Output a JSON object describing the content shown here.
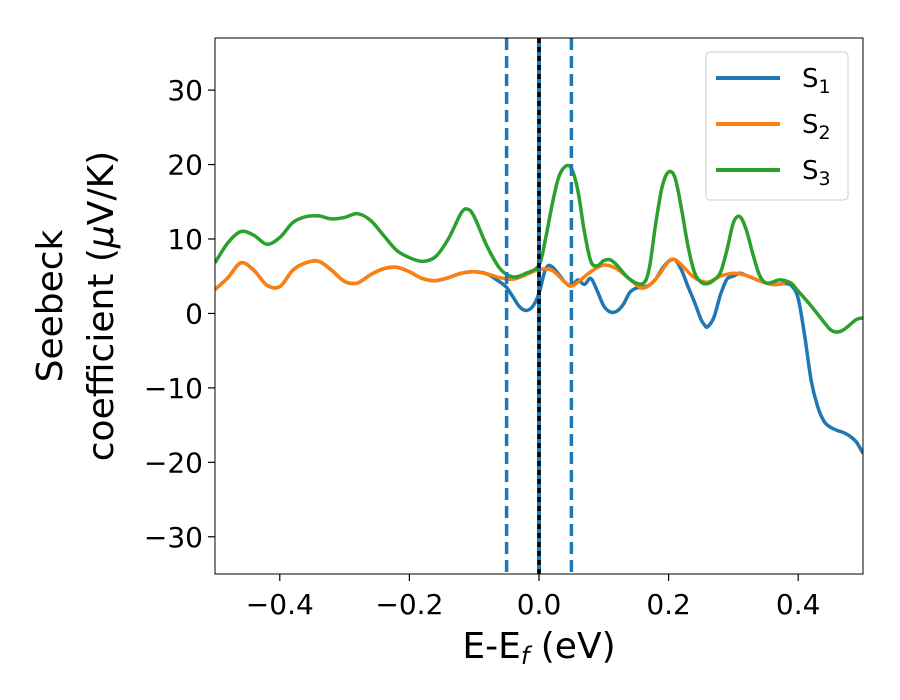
{
  "chart_data": {
    "type": "line",
    "title": "",
    "xlabel": {
      "base": "E-E",
      "sub": "f",
      "rest": " (eV)"
    },
    "ylabel": {
      "line1": "Seebeck",
      "line2_pre": "coefficient  (",
      "mu": "μ",
      "line2_post": "V/K)"
    },
    "xlim": [
      -0.5,
      0.5
    ],
    "ylim": [
      -35,
      37
    ],
    "x_ticks": [
      {
        "value": -0.4,
        "label": "−0.4"
      },
      {
        "value": -0.2,
        "label": "−0.2"
      },
      {
        "value": 0.0,
        "label": "0.0"
      },
      {
        "value": 0.2,
        "label": "0.2"
      },
      {
        "value": 0.4,
        "label": "0.4"
      }
    ],
    "y_ticks": [
      {
        "value": 30,
        "label": "30"
      },
      {
        "value": 20,
        "label": "20"
      },
      {
        "value": 10,
        "label": "10"
      },
      {
        "value": 0,
        "label": "0"
      },
      {
        "value": -10,
        "label": "−10"
      },
      {
        "value": -20,
        "label": "−20"
      },
      {
        "value": -30,
        "label": "−30"
      }
    ],
    "grid": false,
    "legend_position": "top-right",
    "vlines": [
      {
        "x": -0.05,
        "style": "dashed",
        "color": "#1f77b4"
      },
      {
        "x": 0.0,
        "style": "solid",
        "color": "#1f77b4"
      },
      {
        "x": 0.0,
        "style": "dashed",
        "color": "#000000"
      },
      {
        "x": 0.05,
        "style": "dashed",
        "color": "#1f77b4"
      }
    ],
    "series": [
      {
        "name": "S",
        "sub": "1",
        "color": "#1f77b4",
        "points": [
          [
            -0.5,
            3.2
          ],
          [
            -0.48,
            4.8
          ],
          [
            -0.46,
            6.8
          ],
          [
            -0.44,
            5.8
          ],
          [
            -0.42,
            3.8
          ],
          [
            -0.4,
            3.6
          ],
          [
            -0.38,
            5.8
          ],
          [
            -0.36,
            6.8
          ],
          [
            -0.34,
            7.0
          ],
          [
            -0.32,
            5.8
          ],
          [
            -0.3,
            4.3
          ],
          [
            -0.28,
            4.1
          ],
          [
            -0.26,
            5.2
          ],
          [
            -0.24,
            6.0
          ],
          [
            -0.22,
            6.2
          ],
          [
            -0.2,
            5.6
          ],
          [
            -0.18,
            4.7
          ],
          [
            -0.16,
            4.4
          ],
          [
            -0.14,
            4.8
          ],
          [
            -0.12,
            5.4
          ],
          [
            -0.1,
            5.6
          ],
          [
            -0.08,
            5.3
          ],
          [
            -0.06,
            4.2
          ],
          [
            -0.05,
            3.5
          ],
          [
            -0.04,
            2.2
          ],
          [
            -0.03,
            0.9
          ],
          [
            -0.02,
            0.4
          ],
          [
            -0.01,
            0.9
          ],
          [
            0.0,
            2.7
          ],
          [
            0.01,
            5.9
          ],
          [
            0.02,
            6.3
          ],
          [
            0.04,
            4.2
          ],
          [
            0.05,
            3.7
          ],
          [
            0.06,
            4.5
          ],
          [
            0.07,
            3.9
          ],
          [
            0.08,
            4.7
          ],
          [
            0.09,
            3.0
          ],
          [
            0.1,
            1.0
          ],
          [
            0.11,
            0.2
          ],
          [
            0.12,
            0.3
          ],
          [
            0.13,
            1.2
          ],
          [
            0.14,
            2.8
          ],
          [
            0.15,
            3.4
          ],
          [
            0.16,
            3.5
          ],
          [
            0.17,
            3.8
          ],
          [
            0.18,
            4.6
          ],
          [
            0.19,
            6.0
          ],
          [
            0.2,
            7.0
          ],
          [
            0.21,
            7.2
          ],
          [
            0.22,
            5.8
          ],
          [
            0.23,
            3.6
          ],
          [
            0.24,
            1.5
          ],
          [
            0.25,
            -0.8
          ],
          [
            0.255,
            -1.5
          ],
          [
            0.26,
            -1.8
          ],
          [
            0.27,
            -0.5
          ],
          [
            0.28,
            2.5
          ],
          [
            0.29,
            4.6
          ],
          [
            0.3,
            5.0
          ],
          [
            0.31,
            5.4
          ],
          [
            0.32,
            5.1
          ],
          [
            0.34,
            4.4
          ],
          [
            0.36,
            3.9
          ],
          [
            0.38,
            4.0
          ],
          [
            0.39,
            3.7
          ],
          [
            0.4,
            2.0
          ],
          [
            0.41,
            -3.0
          ],
          [
            0.42,
            -9.0
          ],
          [
            0.43,
            -12.5
          ],
          [
            0.44,
            -14.5
          ],
          [
            0.45,
            -15.3
          ],
          [
            0.46,
            -15.7
          ],
          [
            0.47,
            -16.0
          ],
          [
            0.48,
            -16.5
          ],
          [
            0.49,
            -17.3
          ],
          [
            0.5,
            -18.8
          ]
        ]
      },
      {
        "name": "S",
        "sub": "2",
        "color": "#ff7f0e",
        "points": [
          [
            -0.5,
            3.2
          ],
          [
            -0.48,
            4.8
          ],
          [
            -0.46,
            6.8
          ],
          [
            -0.44,
            5.8
          ],
          [
            -0.42,
            3.8
          ],
          [
            -0.4,
            3.6
          ],
          [
            -0.38,
            5.8
          ],
          [
            -0.36,
            6.8
          ],
          [
            -0.34,
            7.0
          ],
          [
            -0.32,
            5.8
          ],
          [
            -0.3,
            4.3
          ],
          [
            -0.28,
            4.1
          ],
          [
            -0.26,
            5.2
          ],
          [
            -0.24,
            6.0
          ],
          [
            -0.22,
            6.2
          ],
          [
            -0.2,
            5.6
          ],
          [
            -0.18,
            4.7
          ],
          [
            -0.16,
            4.4
          ],
          [
            -0.14,
            4.8
          ],
          [
            -0.12,
            5.4
          ],
          [
            -0.1,
            5.6
          ],
          [
            -0.08,
            5.3
          ],
          [
            -0.06,
            4.8
          ],
          [
            -0.04,
            4.6
          ],
          [
            -0.02,
            5.2
          ],
          [
            0.0,
            5.9
          ],
          [
            0.02,
            5.8
          ],
          [
            0.04,
            4.2
          ],
          [
            0.05,
            3.7
          ],
          [
            0.06,
            4.2
          ],
          [
            0.08,
            5.6
          ],
          [
            0.1,
            6.5
          ],
          [
            0.12,
            6.0
          ],
          [
            0.14,
            4.6
          ],
          [
            0.16,
            3.4
          ],
          [
            0.18,
            4.6
          ],
          [
            0.2,
            7.0
          ],
          [
            0.21,
            7.2
          ],
          [
            0.22,
            6.5
          ],
          [
            0.24,
            4.8
          ],
          [
            0.26,
            4.2
          ],
          [
            0.28,
            5.0
          ],
          [
            0.3,
            5.4
          ],
          [
            0.32,
            5.1
          ],
          [
            0.34,
            4.4
          ],
          [
            0.36,
            3.9
          ],
          [
            0.38,
            4.0
          ]
        ]
      },
      {
        "name": "S",
        "sub": "3",
        "color": "#2ca02c",
        "points": [
          [
            -0.5,
            6.8
          ],
          [
            -0.48,
            9.5
          ],
          [
            -0.46,
            11.0
          ],
          [
            -0.44,
            10.5
          ],
          [
            -0.42,
            9.3
          ],
          [
            -0.4,
            10.2
          ],
          [
            -0.38,
            12.2
          ],
          [
            -0.36,
            13.0
          ],
          [
            -0.34,
            13.1
          ],
          [
            -0.32,
            12.7
          ],
          [
            -0.3,
            12.9
          ],
          [
            -0.28,
            13.4
          ],
          [
            -0.26,
            12.5
          ],
          [
            -0.24,
            10.5
          ],
          [
            -0.22,
            8.5
          ],
          [
            -0.2,
            7.5
          ],
          [
            -0.18,
            7.0
          ],
          [
            -0.16,
            7.6
          ],
          [
            -0.14,
            10.0
          ],
          [
            -0.12,
            13.5
          ],
          [
            -0.11,
            14.0
          ],
          [
            -0.1,
            13.0
          ],
          [
            -0.08,
            9.0
          ],
          [
            -0.06,
            6.0
          ],
          [
            -0.04,
            4.9
          ],
          [
            -0.02,
            5.4
          ],
          [
            0.0,
            6.5
          ],
          [
            0.01,
            10.0
          ],
          [
            0.02,
            14.5
          ],
          [
            0.03,
            18.2
          ],
          [
            0.04,
            19.7
          ],
          [
            0.05,
            19.5
          ],
          [
            0.06,
            16.5
          ],
          [
            0.07,
            11.0
          ],
          [
            0.08,
            7.0
          ],
          [
            0.09,
            6.4
          ],
          [
            0.1,
            7.1
          ],
          [
            0.11,
            7.2
          ],
          [
            0.12,
            6.5
          ],
          [
            0.14,
            4.6
          ],
          [
            0.16,
            4.0
          ],
          [
            0.17,
            6.0
          ],
          [
            0.18,
            12.0
          ],
          [
            0.19,
            17.0
          ],
          [
            0.2,
            19.0
          ],
          [
            0.21,
            18.2
          ],
          [
            0.22,
            14.0
          ],
          [
            0.23,
            9.0
          ],
          [
            0.24,
            5.5
          ],
          [
            0.25,
            4.2
          ],
          [
            0.26,
            4.0
          ],
          [
            0.27,
            4.5
          ],
          [
            0.28,
            5.5
          ],
          [
            0.29,
            8.5
          ],
          [
            0.3,
            12.2
          ],
          [
            0.31,
            13.0
          ],
          [
            0.32,
            11.2
          ],
          [
            0.33,
            8.0
          ],
          [
            0.34,
            5.2
          ],
          [
            0.35,
            4.1
          ],
          [
            0.36,
            4.2
          ],
          [
            0.37,
            4.5
          ],
          [
            0.38,
            4.4
          ],
          [
            0.39,
            4.0
          ],
          [
            0.4,
            3.0
          ],
          [
            0.42,
            1.0
          ],
          [
            0.44,
            -1.2
          ],
          [
            0.45,
            -2.2
          ],
          [
            0.46,
            -2.5
          ],
          [
            0.47,
            -2.2
          ],
          [
            0.48,
            -1.5
          ],
          [
            0.49,
            -0.8
          ],
          [
            0.5,
            -0.6
          ]
        ]
      }
    ]
  }
}
